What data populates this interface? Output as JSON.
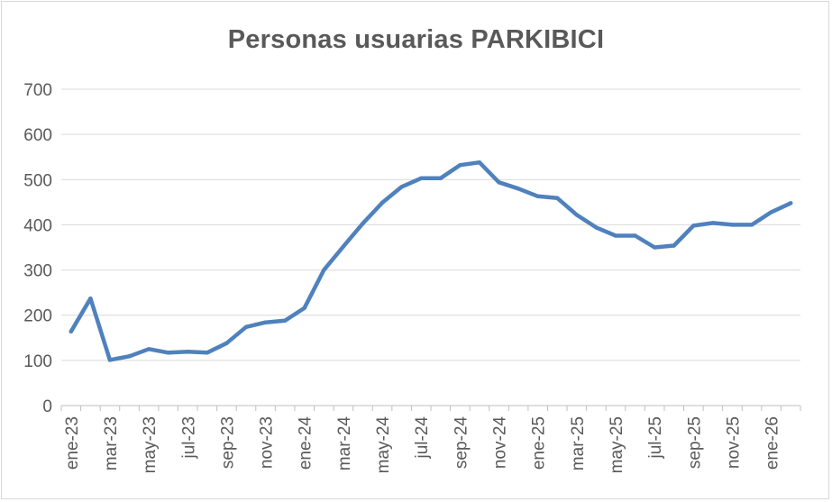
{
  "chart_data": {
    "type": "line",
    "title": "Personas usuarias PARKIBICI",
    "xlabel": "",
    "ylabel": "",
    "ylim": [
      0,
      700
    ],
    "yticks": [
      0,
      100,
      200,
      300,
      400,
      500,
      600,
      700
    ],
    "grid": true,
    "legend": "none",
    "x_tick_labels": [
      "ene-23",
      "mar-23",
      "may-23",
      "jul-23",
      "sep-23",
      "nov-23",
      "ene-24",
      "mar-24",
      "may-24",
      "jul-24",
      "sep-24",
      "nov-24",
      "ene-25",
      "mar-25",
      "may-25",
      "jul-25",
      "sep-25",
      "nov-25",
      "ene-26"
    ],
    "x": [
      "ene-23",
      "feb-23",
      "mar-23",
      "abr-23",
      "may-23",
      "jun-23",
      "jul-23",
      "ago-23",
      "sep-23",
      "oct-23",
      "nov-23",
      "dic-23",
      "ene-24",
      "feb-24",
      "mar-24",
      "abr-24",
      "may-24",
      "jun-24",
      "jul-24",
      "ago-24",
      "sep-24",
      "oct-24",
      "nov-24",
      "dic-24",
      "ene-25",
      "feb-25",
      "mar-25",
      "abr-25",
      "may-25",
      "jun-25",
      "jul-25",
      "ago-25",
      "sep-25",
      "oct-25",
      "nov-25",
      "dic-25",
      "ene-26",
      "feb-26"
    ],
    "series": [
      {
        "color": "#4f81bd",
        "values": [
          164,
          237,
          101,
          109,
          125,
          117,
          119,
          117,
          138,
          174,
          184,
          188,
          216,
          300,
          352,
          403,
          449,
          484,
          503,
          503,
          532,
          538,
          494,
          480,
          463,
          459,
          422,
          394,
          376,
          376,
          350,
          354,
          398,
          404,
          400,
          400,
          428,
          448
        ]
      }
    ],
    "colors": {
      "gridline": "#d9d9d9",
      "axis": "#bfbfbf",
      "text": "#595959"
    }
  }
}
